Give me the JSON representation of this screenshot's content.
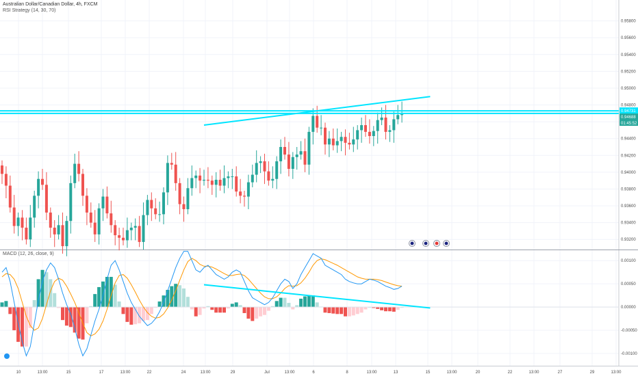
{
  "header": {
    "symbol_line": "Australian Dollar/Canadian Dollar, 4h, FXCM",
    "indicator_line": "RSI Strategy (14, 30, 70)",
    "macd_line": "MACD (12, 26, close, 9)"
  },
  "colors": {
    "up": "#26a69a",
    "up_light": "#b2dfdb",
    "down": "#ef5350",
    "down_light": "#ffcdd2",
    "trendline": "#00e5ff",
    "macd_line": "#2196f3",
    "signal_line": "#ff9800",
    "grid": "#f0f3fa",
    "price_tag": "#26a69a"
  },
  "chart_data": [
    {
      "type": "candlestick",
      "title": "Australian Dollar/Canadian Dollar, 4h, FXCM",
      "x_tick_labels": [
        "10",
        "13:00",
        "15",
        "17",
        "13:00",
        "22",
        "24",
        "13:00",
        "29",
        "Jul",
        "13:00",
        "6",
        "8",
        "13:00",
        "13",
        "15",
        "13:00",
        "20",
        "22",
        "13:00",
        "27",
        "29",
        "13:00"
      ],
      "y_tick_labels": [
        "0.95800",
        "0.95600",
        "0.95400",
        "0.95200",
        "0.95000",
        "0.94800",
        "0.94600",
        "0.94400",
        "0.94200",
        "0.94000",
        "0.93800",
        "0.93600",
        "0.93400",
        "0.93200"
      ],
      "ylim": [
        0.9308,
        0.96
      ],
      "horizontal_levels": [
        0.9473,
        0.947
      ],
      "trendline": {
        "start": [
          50,
          0.9456
        ],
        "end": [
          106,
          0.949
        ]
      },
      "price_tags": [
        "0.94731",
        "0.94688",
        "01:45:52"
      ],
      "event_markers": [
        "flag-au-icon",
        "flag-au-icon",
        "flag-ca-icon",
        "flag-au-icon"
      ],
      "closes": [
        0.9398,
        0.9384,
        0.9358,
        0.9336,
        0.9346,
        0.9334,
        0.932,
        0.9346,
        0.9372,
        0.9392,
        0.9385,
        0.9352,
        0.9334,
        0.9326,
        0.9337,
        0.9312,
        0.9342,
        0.9387,
        0.941,
        0.9398,
        0.9372,
        0.9352,
        0.934,
        0.9326,
        0.9357,
        0.9371,
        0.9351,
        0.9337,
        0.9325,
        0.9322,
        0.9319,
        0.9331,
        0.9334,
        0.9336,
        0.9317,
        0.9349,
        0.9367,
        0.9357,
        0.935,
        0.935,
        0.9376,
        0.9411,
        0.9409,
        0.9387,
        0.9362,
        0.9356,
        0.9381,
        0.9393,
        0.9396,
        0.939,
        0.9391,
        0.939,
        0.9385,
        0.9391,
        0.9384,
        0.9393,
        0.9395,
        0.9395,
        0.9377,
        0.9372,
        0.9371,
        0.9388,
        0.9397,
        0.9411,
        0.9413,
        0.9401,
        0.939,
        0.9392,
        0.9413,
        0.943,
        0.9421,
        0.9404,
        0.9418,
        0.9421,
        0.9425,
        0.9409,
        0.9448,
        0.9467,
        0.9453,
        0.9453,
        0.9433,
        0.944,
        0.9432,
        0.9437,
        0.9442,
        0.9435,
        0.9433,
        0.9439,
        0.945,
        0.9456,
        0.9448,
        0.9443,
        0.9449,
        0.9462,
        0.9465,
        0.9448,
        0.945,
        0.9463,
        0.9468,
        0.9469
      ]
    },
    {
      "type": "macd",
      "title": "MACD (12, 26, close, 9)",
      "y_tick_labels": [
        "0.00100",
        "0.00050",
        "0.00000",
        "-0.00050",
        "-0.00100"
      ],
      "ylim": [
        -0.00122,
        0.00118
      ],
      "trendline": {
        "start": [
          50,
          0.00048
        ],
        "end": [
          106,
          -2e-05
        ]
      },
      "macd": [
        0.00075,
        0.00085,
        0.00055,
        0.0001,
        -0.00035,
        -0.00075,
        -0.00105,
        -0.00085,
        -0.00035,
        0.00015,
        0.00055,
        0.0008,
        0.00095,
        0.00085,
        0.0006,
        0.0003,
        5e-05,
        -0.00015,
        -0.00045,
        -0.0008,
        -0.00105,
        -0.0009,
        -0.0006,
        -0.0003,
        -5e-05,
        0.00025,
        0.0006,
        0.0009,
        0.001,
        0.0008,
        0.00055,
        0.0003,
        0.0001,
        -5e-05,
        -0.0002,
        -0.0003,
        -0.0004,
        -0.00035,
        -0.00025,
        -0.0001,
        0.0001,
        0.00035,
        0.0006,
        0.00085,
        0.00105,
        0.0012,
        0.0012,
        0.001,
        0.0008,
        0.00075,
        0.00085,
        0.0009,
        0.0008,
        0.0007,
        0.00065,
        0.0006,
        0.00065,
        0.00075,
        0.0008,
        0.00075,
        0.00055,
        0.00035,
        0.0002,
        0.00015,
        0.0001,
        5e-05,
        0.0001,
        0.0002,
        0.00035,
        0.0005,
        0.0006,
        0.00055,
        0.0004,
        0.0005,
        0.0007,
        0.00085,
        0.001,
        0.00115,
        0.0011,
        0.00105,
        0.0009,
        0.00085,
        0.0008,
        0.00075,
        0.0007,
        0.0006,
        0.00055,
        0.00052,
        0.0005,
        0.0005,
        0.00055,
        0.0006,
        0.00058,
        0.00055,
        0.0005,
        0.00045,
        0.00042,
        0.00038,
        0.0004,
        0.00045
      ],
      "signal": [
        0.00065,
        0.00072,
        0.0007,
        0.0006,
        0.0004,
        0.0001,
        -0.0002,
        -0.0004,
        -0.0005,
        -0.00045,
        -0.00025,
        5e-05,
        0.00035,
        0.00055,
        0.00062,
        0.00058,
        0.00045,
        0.00028,
        0.0001,
        -0.00012,
        -0.00035,
        -0.00055,
        -0.00062,
        -0.00058,
        -0.00048,
        -0.0003,
        -5e-05,
        0.00025,
        0.00052,
        0.00068,
        0.0007,
        0.00062,
        0.00048,
        0.00032,
        0.00015,
        0.0,
        -0.00012,
        -0.0002,
        -0.00024,
        -0.00022,
        -0.00015,
        -2e-05,
        0.00015,
        0.00035,
        0.00058,
        0.0008,
        0.00098,
        0.00105,
        0.001,
        0.00092,
        0.00088,
        0.00088,
        0.00086,
        0.00082,
        0.00077,
        0.00072,
        0.00068,
        0.00068,
        0.0007,
        0.00071,
        0.00068,
        0.0006,
        0.0005,
        0.0004,
        0.0003,
        0.00022,
        0.00018,
        0.00018,
        0.00022,
        0.0003,
        0.0004,
        0.00046,
        0.00045,
        0.00046,
        0.00052,
        0.00062,
        0.00075,
        0.0009,
        0.001,
        0.00104,
        0.00102,
        0.00098,
        0.00094,
        0.0009,
        0.00085,
        0.0008,
        0.00075,
        0.0007,
        0.00065,
        0.00062,
        0.0006,
        0.0006,
        0.0006,
        0.00059,
        0.00057,
        0.00054,
        0.00051,
        0.00048,
        0.00046,
        0.00045
      ]
    }
  ]
}
